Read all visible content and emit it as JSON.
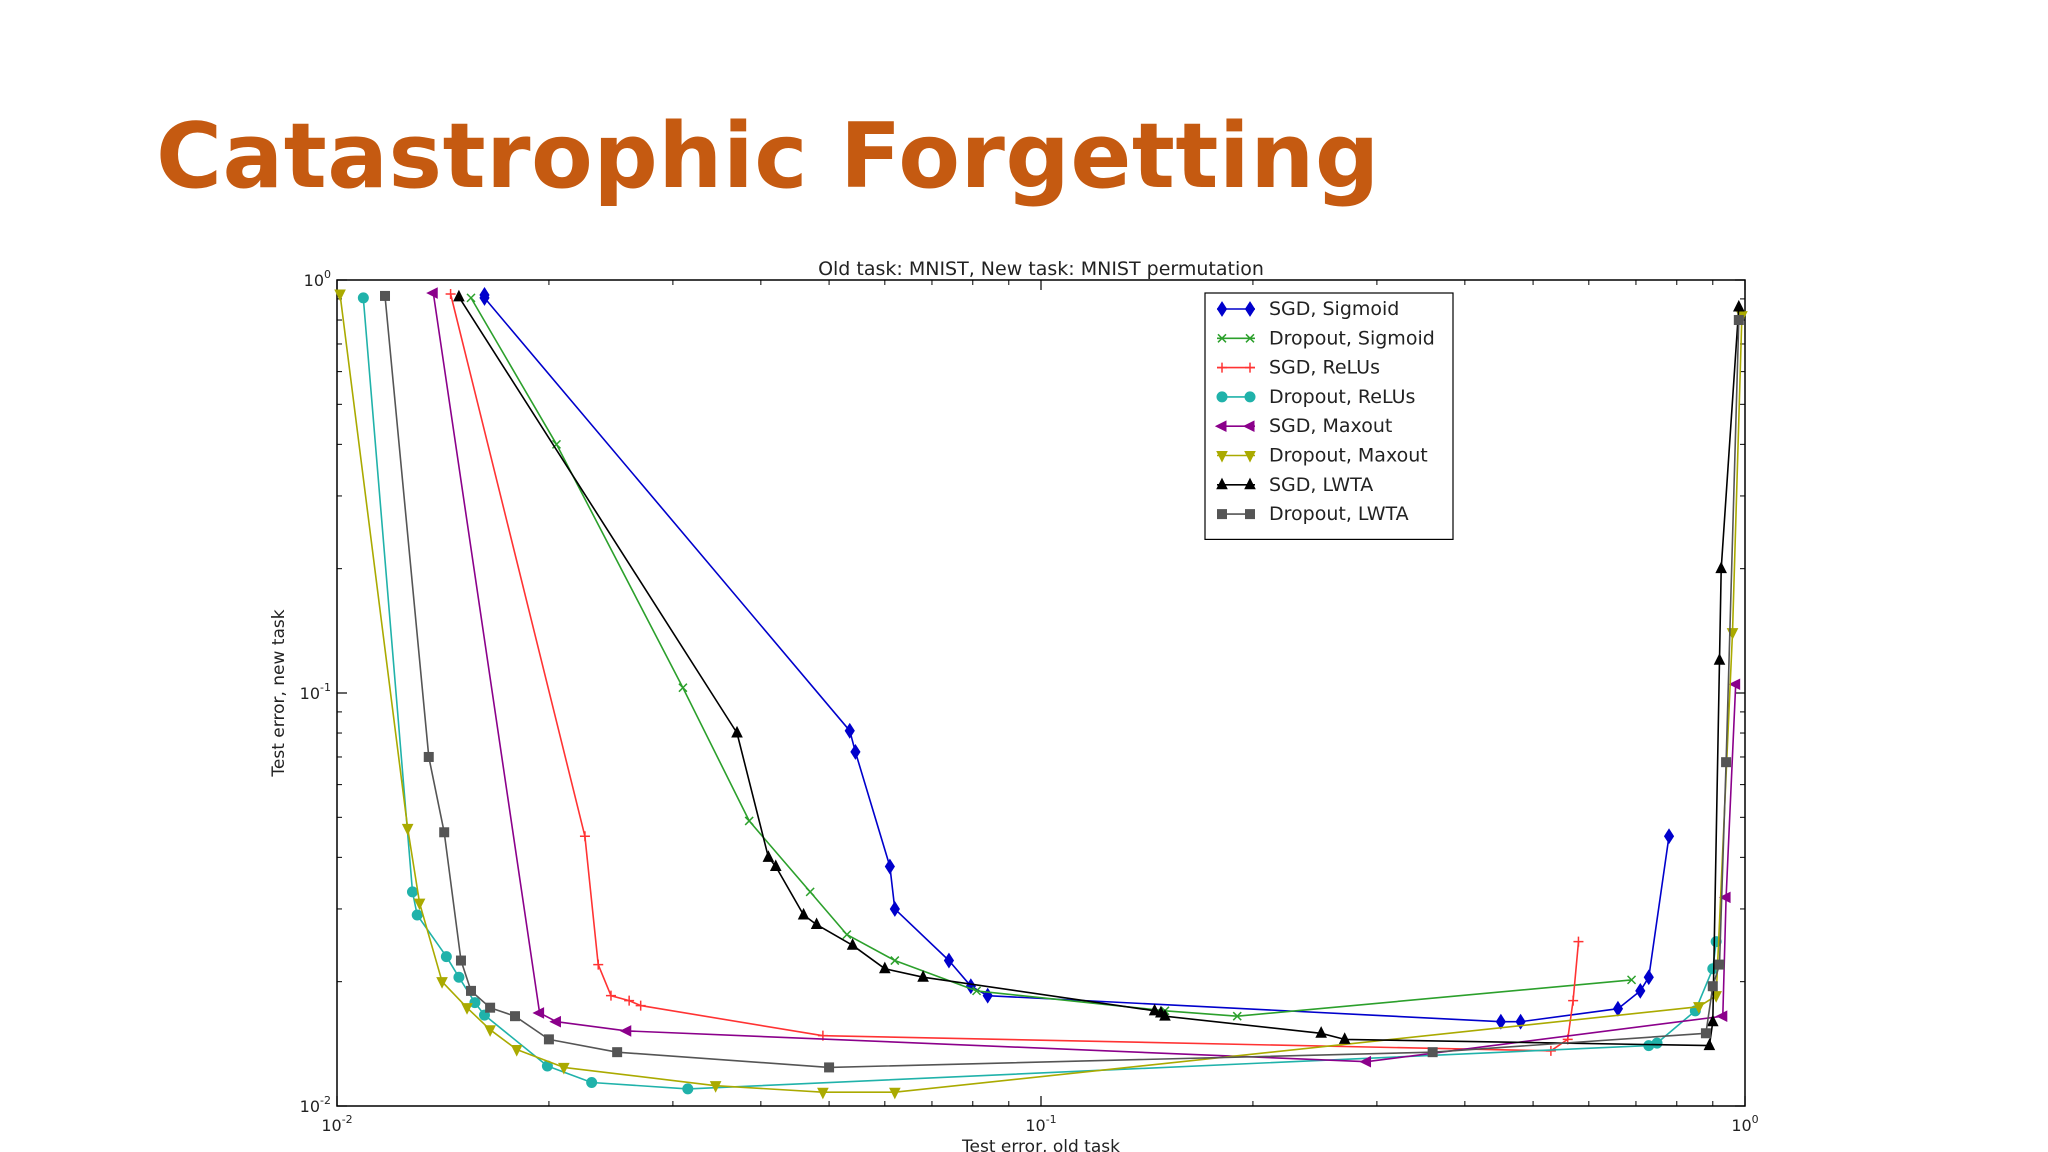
{
  "slide": {
    "title": "Catastrophic Forgetting"
  },
  "colors": {
    "title": "#c55a11"
  },
  "chart_data": {
    "type": "line",
    "title": "Old task: MNIST, New task: MNIST permutation",
    "xlabel": "Test error, old task",
    "ylabel": "Test error, new task",
    "xscale": "log",
    "yscale": "log",
    "xlim": [
      0.01,
      1
    ],
    "ylim": [
      0.01,
      1
    ],
    "xticks": [
      {
        "value": 0.01,
        "base": "10",
        "exp": "-2"
      },
      {
        "value": 0.1,
        "base": "10",
        "exp": "-1"
      },
      {
        "value": 1,
        "base": "10",
        "exp": "0"
      }
    ],
    "yticks": [
      {
        "value": 0.01,
        "base": "10",
        "exp": "-2"
      },
      {
        "value": 0.1,
        "base": "10",
        "exp": "-1"
      },
      {
        "value": 1,
        "base": "10",
        "exp": "0"
      }
    ],
    "grid": false,
    "legend_position": "top-right",
    "series": [
      {
        "name": "SGD, Sigmoid",
        "color": "#0000cc",
        "marker": "diamond",
        "x": [
          0.0162,
          0.0162,
          0.0535,
          0.0545,
          0.061,
          0.062,
          0.074,
          0.0795,
          0.084,
          0.45,
          0.48,
          0.66,
          0.71,
          0.73,
          0.78
        ],
        "y": [
          0.92,
          0.905,
          0.081,
          0.072,
          0.038,
          0.03,
          0.0225,
          0.0195,
          0.0185,
          0.016,
          0.016,
          0.0172,
          0.019,
          0.0205,
          0.045
        ]
      },
      {
        "name": "Dropout, Sigmoid",
        "color": "#2ca02c",
        "marker": "x",
        "x": [
          0.0155,
          0.0205,
          0.031,
          0.0385,
          0.047,
          0.053,
          0.062,
          0.081,
          0.15,
          0.19,
          0.69
        ],
        "y": [
          0.905,
          0.4,
          0.103,
          0.049,
          0.033,
          0.026,
          0.0225,
          0.019,
          0.017,
          0.0165,
          0.0202
        ]
      },
      {
        "name": "SGD, ReLUs",
        "color": "#ff3333",
        "marker": "plus",
        "x": [
          0.0145,
          0.0225,
          0.0235,
          0.0245,
          0.026,
          0.027,
          0.049,
          0.53,
          0.56,
          0.57,
          0.58
        ],
        "y": [
          0.925,
          0.045,
          0.022,
          0.0185,
          0.018,
          0.0175,
          0.0148,
          0.0136,
          0.0145,
          0.018,
          0.025
        ]
      },
      {
        "name": "Dropout, ReLUs",
        "color": "#20b2aa",
        "marker": "circle",
        "x": [
          0.0109,
          0.0128,
          0.013,
          0.0143,
          0.0149,
          0.0157,
          0.0162,
          0.0199,
          0.023,
          0.0315,
          0.73,
          0.75,
          0.85,
          0.9,
          0.91
        ],
        "y": [
          0.905,
          0.033,
          0.029,
          0.023,
          0.0205,
          0.0178,
          0.0166,
          0.0125,
          0.0114,
          0.011,
          0.014,
          0.0142,
          0.017,
          0.0215,
          0.025
        ]
      },
      {
        "name": "SGD, Maxout",
        "color": "#8b008b",
        "marker": "triangle-left",
        "x": [
          0.0137,
          0.0194,
          0.0205,
          0.0258,
          0.29,
          0.93,
          0.94,
          0.97
        ],
        "y": [
          0.93,
          0.0168,
          0.016,
          0.0152,
          0.0128,
          0.0165,
          0.032,
          0.105
        ]
      },
      {
        "name": "Dropout, Maxout",
        "color": "#aaaa00",
        "marker": "triangle-down",
        "x": [
          0.0101,
          0.0126,
          0.0131,
          0.0141,
          0.0153,
          0.0165,
          0.018,
          0.021,
          0.0345,
          0.049,
          0.062,
          0.86,
          0.91,
          0.96,
          0.99
        ],
        "y": [
          0.925,
          0.047,
          0.031,
          0.02,
          0.0173,
          0.0153,
          0.0137,
          0.0124,
          0.0112,
          0.0108,
          0.0108,
          0.0174,
          0.0185,
          0.14,
          0.82
        ]
      },
      {
        "name": "SGD, LWTA",
        "color": "#000000",
        "marker": "triangle-up",
        "x": [
          0.0149,
          0.037,
          0.041,
          0.042,
          0.046,
          0.048,
          0.054,
          0.06,
          0.068,
          0.145,
          0.148,
          0.15,
          0.25,
          0.27,
          0.89,
          0.9,
          0.92,
          0.925,
          0.98
        ],
        "y": [
          0.91,
          0.08,
          0.04,
          0.038,
          0.029,
          0.0275,
          0.0245,
          0.0215,
          0.0205,
          0.017,
          0.0168,
          0.0165,
          0.015,
          0.0145,
          0.014,
          0.016,
          0.12,
          0.2,
          0.86
        ]
      },
      {
        "name": "Dropout, LWTA",
        "color": "#555555",
        "marker": "square",
        "x": [
          0.0117,
          0.0135,
          0.0142,
          0.015,
          0.0155,
          0.0165,
          0.0179,
          0.02,
          0.025,
          0.05,
          0.36,
          0.88,
          0.9,
          0.92,
          0.94,
          0.98
        ],
        "y": [
          0.915,
          0.07,
          0.046,
          0.0225,
          0.019,
          0.0173,
          0.0165,
          0.0145,
          0.0135,
          0.0124,
          0.0135,
          0.015,
          0.0195,
          0.022,
          0.068,
          0.8
        ]
      }
    ]
  }
}
